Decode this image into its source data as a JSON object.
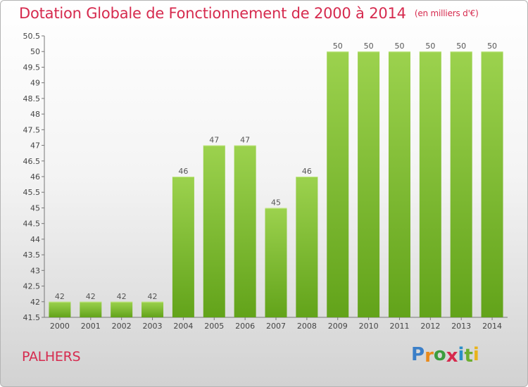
{
  "title": "Dotation Globale de Fonctionnement de 2000 à 2014",
  "unit": "(en milliers d'€)",
  "commune": "PALHERS",
  "logo": {
    "text": "Proxiti",
    "letters": [
      "P",
      "r",
      "o",
      "x",
      "i",
      "t",
      "i"
    ],
    "colors": [
      "#3b7fc8",
      "#e98a1a",
      "#3b9d3e",
      "#d62a4e",
      "#2a8ec8",
      "#6cae2f",
      "#e9b31a"
    ]
  },
  "colors": {
    "title": "#d62a4e",
    "bar_top": "#9cd24e",
    "bar_bottom": "#62a31a",
    "axis": "#777777",
    "grid": "#cccccc"
  },
  "chart_data": {
    "type": "bar",
    "categories": [
      "2000",
      "2001",
      "2002",
      "2003",
      "2004",
      "2005",
      "2006",
      "2007",
      "2008",
      "2009",
      "2010",
      "2011",
      "2012",
      "2013",
      "2014"
    ],
    "values": [
      42,
      42,
      42,
      42,
      46,
      47,
      47,
      45,
      46,
      50,
      50,
      50,
      50,
      50,
      50
    ],
    "ylim": [
      41.5,
      50.5
    ],
    "yticks": [
      "41.5",
      "42",
      "42.5",
      "43",
      "43.5",
      "44",
      "44.5",
      "45",
      "45.5",
      "46",
      "46.5",
      "47",
      "47.5",
      "48",
      "48.5",
      "49",
      "49.5",
      "50",
      "50.5"
    ],
    "grid": false,
    "legend": "none"
  }
}
